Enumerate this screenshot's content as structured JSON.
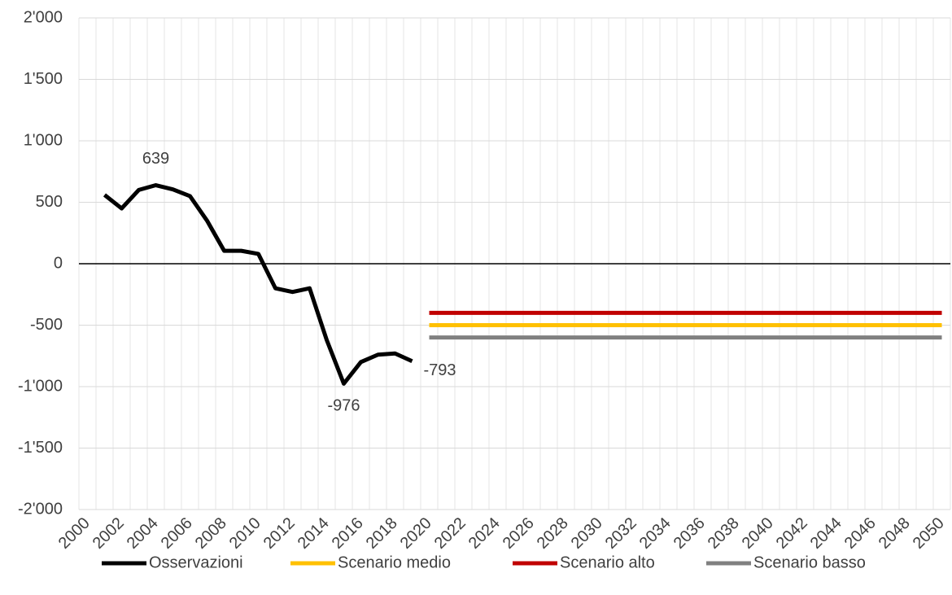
{
  "chart_data": {
    "type": "line",
    "categories": [
      "2000",
      null,
      "2002",
      null,
      "2004",
      null,
      "2006",
      null,
      "2008",
      null,
      "2010",
      null,
      "2012",
      null,
      "2014",
      null,
      "2016",
      null,
      "2018",
      null,
      "2020",
      null,
      "2022",
      null,
      "2024",
      null,
      "2026",
      null,
      "2028",
      null,
      "2030",
      null,
      "2032",
      null,
      "2034",
      null,
      "2036",
      null,
      "2038",
      null,
      "2040",
      null,
      "2042",
      null,
      "2044",
      null,
      "2046",
      null,
      "2048",
      null,
      "2050"
    ],
    "series": [
      {
        "name": "Osservazioni",
        "color": "#000000",
        "values": [
          null,
          560,
          450,
          600,
          639,
          605,
          550,
          350,
          105,
          105,
          80,
          -200,
          -230,
          -200,
          -620,
          -976,
          -800,
          -740,
          -730,
          -793,
          null,
          null,
          null,
          null,
          null,
          null,
          null,
          null,
          null,
          null,
          null,
          null,
          null,
          null,
          null,
          null,
          null,
          null,
          null,
          null,
          null,
          null,
          null,
          null,
          null,
          null,
          null,
          null,
          null,
          null,
          null
        ]
      },
      {
        "name": "Scenario medio",
        "color": "#ffc000",
        "values": [
          null,
          null,
          null,
          null,
          null,
          null,
          null,
          null,
          null,
          null,
          null,
          null,
          null,
          null,
          null,
          null,
          null,
          null,
          null,
          null,
          -500,
          -500,
          -500,
          -500,
          -500,
          -500,
          -500,
          -500,
          -500,
          -500,
          -500,
          -500,
          -500,
          -500,
          -500,
          -500,
          -500,
          -500,
          -500,
          -500,
          -500,
          -500,
          -500,
          -500,
          -500,
          -500,
          -500,
          -500,
          -500,
          -500,
          -500
        ]
      },
      {
        "name": "Scenario alto",
        "color": "#c00000",
        "values": [
          null,
          null,
          null,
          null,
          null,
          null,
          null,
          null,
          null,
          null,
          null,
          null,
          null,
          null,
          null,
          null,
          null,
          null,
          null,
          null,
          -400,
          -400,
          -400,
          -400,
          -400,
          -400,
          -400,
          -400,
          -400,
          -400,
          -400,
          -400,
          -400,
          -400,
          -400,
          -400,
          -400,
          -400,
          -400,
          -400,
          -400,
          -400,
          -400,
          -400,
          -400,
          -400,
          -400,
          -400,
          -400,
          -400,
          -400
        ]
      },
      {
        "name": "Scenario basso",
        "color": "#808080",
        "values": [
          null,
          null,
          null,
          null,
          null,
          null,
          null,
          null,
          null,
          null,
          null,
          null,
          null,
          null,
          null,
          null,
          null,
          null,
          null,
          null,
          -600,
          -600,
          -600,
          -600,
          -600,
          -600,
          -600,
          -600,
          -600,
          -600,
          -600,
          -600,
          -600,
          -600,
          -600,
          -600,
          -600,
          -600,
          -600,
          -600,
          -600,
          -600,
          -600,
          -600,
          -600,
          -600,
          -600,
          -600,
          -600,
          -600,
          -600
        ]
      }
    ],
    "ylim": [
      -2000,
      2000
    ],
    "yticks": [
      {
        "value": -2000,
        "label": "-2'000"
      },
      {
        "value": -1500,
        "label": "-1'500"
      },
      {
        "value": -1000,
        "label": "-1'000"
      },
      -500,
      0,
      500,
      {
        "value": 1000,
        "label": "1'000"
      },
      {
        "value": 1500,
        "label": "1'500"
      },
      {
        "value": 2000,
        "label": "2'000"
      }
    ],
    "grid": true,
    "legend": "bottom"
  }
}
